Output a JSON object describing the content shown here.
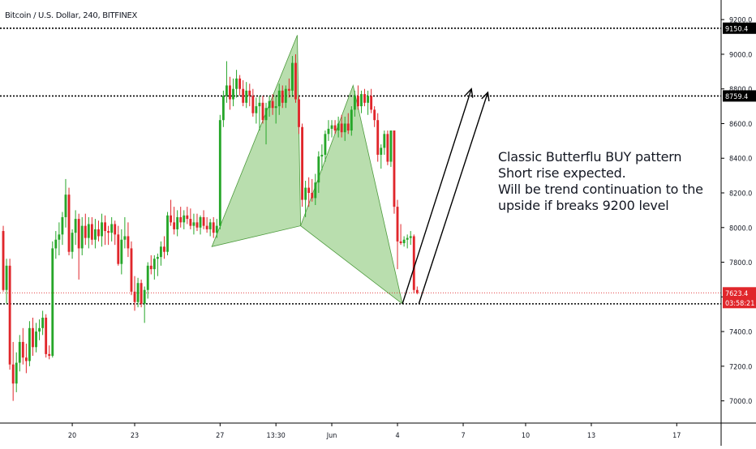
{
  "chart_data": {
    "type": "candlestick",
    "title": "Bitcoin / U.S. Dollar, 240, BITFINEX",
    "ylim": [
      6900,
      9280
    ],
    "yticks": [
      "9200.0",
      "9000.0",
      "8800.0",
      "8600.0",
      "8400.0",
      "8200.0",
      "8000.0",
      "7800.0",
      "7600.0",
      "7400.0",
      "7200.0",
      "7000.0"
    ],
    "xticks": [
      {
        "label": "20",
        "bar": 21
      },
      {
        "label": "23",
        "bar": 40
      },
      {
        "label": "27",
        "bar": 66
      },
      {
        "label": "13:30",
        "bar": 83
      },
      {
        "label": "Jun",
        "bar": 100
      },
      {
        "label": "4",
        "bar": 120
      },
      {
        "label": "7",
        "bar": 140
      },
      {
        "label": "10",
        "bar": 159
      },
      {
        "label": "13",
        "bar": 179
      },
      {
        "label": "17",
        "bar": 205
      }
    ],
    "bars_total": 219,
    "candles": [
      [
        7980,
        8010,
        7630,
        7640
      ],
      [
        7640,
        7820,
        7560,
        7780
      ],
      [
        7780,
        7820,
        7180,
        7210
      ],
      [
        7210,
        7340,
        7000,
        7100
      ],
      [
        7100,
        7280,
        7050,
        7220
      ],
      [
        7220,
        7380,
        7170,
        7340
      ],
      [
        7340,
        7420,
        7210,
        7250
      ],
      [
        7250,
        7330,
        7160,
        7230
      ],
      [
        7230,
        7460,
        7200,
        7420
      ],
      [
        7420,
        7480,
        7260,
        7310
      ],
      [
        7310,
        7450,
        7280,
        7400
      ],
      [
        7400,
        7470,
        7350,
        7420
      ],
      [
        7420,
        7520,
        7380,
        7480
      ],
      [
        7480,
        7500,
        7250,
        7270
      ],
      [
        7270,
        7320,
        7240,
        7260
      ],
      [
        7260,
        7920,
        7250,
        7880
      ],
      [
        7880,
        7980,
        7820,
        7930
      ],
      [
        7930,
        8030,
        7840,
        7960
      ],
      [
        7960,
        8090,
        7900,
        8060
      ],
      [
        8060,
        8280,
        8000,
        8190
      ],
      [
        8190,
        8230,
        7840,
        7860
      ],
      [
        7860,
        7990,
        7820,
        7970
      ],
      [
        7970,
        8100,
        7900,
        8050
      ],
      [
        8050,
        8080,
        7700,
        7880
      ],
      [
        7880,
        8060,
        7840,
        8010
      ],
      [
        8010,
        8080,
        7900,
        7940
      ],
      [
        7940,
        8060,
        7880,
        8020
      ],
      [
        8020,
        8060,
        7900,
        7930
      ],
      [
        7930,
        8050,
        7880,
        7990
      ],
      [
        7990,
        8040,
        7920,
        7950
      ],
      [
        7950,
        8080,
        7890,
        8030
      ],
      [
        8030,
        8070,
        7900,
        7980
      ],
      [
        7980,
        8010,
        7900,
        7970
      ],
      [
        7970,
        8060,
        7920,
        8020
      ],
      [
        8020,
        8040,
        7900,
        7960
      ],
      [
        7960,
        8010,
        7780,
        7790
      ],
      [
        7790,
        7990,
        7730,
        7930
      ],
      [
        7930,
        8060,
        7880,
        7950
      ],
      [
        7950,
        8030,
        7830,
        7880
      ],
      [
        7880,
        7920,
        7610,
        7630
      ],
      [
        7630,
        7720,
        7520,
        7570
      ],
      [
        7570,
        7710,
        7540,
        7680
      ],
      [
        7680,
        7700,
        7540,
        7560
      ],
      [
        7560,
        7660,
        7450,
        7640
      ],
      [
        7640,
        7800,
        7590,
        7780
      ],
      [
        7780,
        7840,
        7730,
        7760
      ],
      [
        7760,
        7840,
        7700,
        7820
      ],
      [
        7820,
        7850,
        7720,
        7830
      ],
      [
        7830,
        7920,
        7780,
        7890
      ],
      [
        7890,
        7950,
        7820,
        7860
      ],
      [
        7860,
        8090,
        7840,
        8070
      ],
      [
        8070,
        8160,
        8010,
        8030
      ],
      [
        8030,
        8120,
        7960,
        7990
      ],
      [
        7990,
        8100,
        7950,
        8060
      ],
      [
        8060,
        8120,
        8000,
        8030
      ],
      [
        8030,
        8100,
        7990,
        8070
      ],
      [
        8070,
        8120,
        8020,
        8050
      ],
      [
        8050,
        8110,
        7990,
        8010
      ],
      [
        8010,
        8080,
        7960,
        8030
      ],
      [
        8030,
        8080,
        7980,
        8000
      ],
      [
        8000,
        8070,
        7960,
        8060
      ],
      [
        8060,
        8100,
        7990,
        8010
      ],
      [
        8010,
        8060,
        7970,
        7990
      ],
      [
        7990,
        8050,
        7950,
        8030
      ],
      [
        8030,
        8060,
        7940,
        7970
      ],
      [
        7970,
        8050,
        7940,
        8010
      ],
      [
        8010,
        8650,
        7990,
        8620
      ],
      [
        8620,
        8790,
        8580,
        8760
      ],
      [
        8760,
        8960,
        8720,
        8820
      ],
      [
        8820,
        8870,
        8680,
        8740
      ],
      [
        8740,
        8860,
        8700,
        8800
      ],
      [
        8800,
        8910,
        8750,
        8860
      ],
      [
        8860,
        8880,
        8760,
        8800
      ],
      [
        8800,
        8850,
        8700,
        8720
      ],
      [
        8720,
        8840,
        8690,
        8790
      ],
      [
        8790,
        8830,
        8700,
        8760
      ],
      [
        8760,
        8800,
        8640,
        8660
      ],
      [
        8660,
        8750,
        8600,
        8700
      ],
      [
        8700,
        8760,
        8560,
        8720
      ],
      [
        8720,
        8760,
        8600,
        8620
      ],
      [
        8620,
        8720,
        8480,
        8690
      ],
      [
        8690,
        8760,
        8640,
        8730
      ],
      [
        8730,
        8770,
        8650,
        8690
      ],
      [
        8690,
        8760,
        8600,
        8700
      ],
      [
        8700,
        8830,
        8650,
        8790
      ],
      [
        8790,
        8820,
        8690,
        8720
      ],
      [
        8720,
        8820,
        8690,
        8800
      ],
      [
        8800,
        8860,
        8750,
        8790
      ],
      [
        8790,
        8990,
        8760,
        8950
      ],
      [
        8950,
        9000,
        8720,
        8740
      ],
      [
        8740,
        8760,
        8540,
        8580
      ],
      [
        8580,
        8600,
        8120,
        8160
      ],
      [
        8160,
        8270,
        8060,
        8230
      ],
      [
        8230,
        8290,
        8120,
        8200
      ],
      [
        8200,
        8280,
        8150,
        8170
      ],
      [
        8170,
        8310,
        8130,
        8260
      ],
      [
        8260,
        8440,
        8200,
        8410
      ],
      [
        8410,
        8480,
        8330,
        8420
      ],
      [
        8420,
        8560,
        8380,
        8540
      ],
      [
        8540,
        8620,
        8500,
        8570
      ],
      [
        8570,
        8620,
        8520,
        8590
      ],
      [
        8590,
        8620,
        8540,
        8560
      ],
      [
        8560,
        8640,
        8520,
        8600
      ],
      [
        8600,
        8650,
        8520,
        8550
      ],
      [
        8550,
        8640,
        8500,
        8600
      ],
      [
        8600,
        8660,
        8540,
        8560
      ],
      [
        8560,
        8700,
        8530,
        8680
      ],
      [
        8680,
        8790,
        8640,
        8760
      ],
      [
        8760,
        8820,
        8680,
        8700
      ],
      [
        8700,
        8790,
        8660,
        8770
      ],
      [
        8770,
        8800,
        8700,
        8720
      ],
      [
        8720,
        8790,
        8650,
        8760
      ],
      [
        8760,
        8800,
        8660,
        8680
      ],
      [
        8680,
        8700,
        8580,
        8620
      ],
      [
        8620,
        8660,
        8380,
        8420
      ],
      [
        8420,
        8480,
        8340,
        8460
      ],
      [
        8460,
        8560,
        8420,
        8540
      ],
      [
        8540,
        8560,
        8360,
        8380
      ],
      [
        8380,
        8560,
        8350,
        8560
      ],
      [
        8560,
        8560,
        8080,
        8120
      ],
      [
        8120,
        8160,
        7760,
        7920
      ],
      [
        7920,
        8020,
        7900,
        7910
      ],
      [
        7910,
        7950,
        7890,
        7930
      ],
      [
        7930,
        7960,
        7880,
        7940
      ],
      [
        7940,
        7980,
        7900,
        7950
      ],
      [
        7950,
        7960,
        7620,
        7640
      ],
      [
        7640,
        7660,
        7615,
        7623
      ]
    ],
    "hlines": [
      {
        "value": 9150.4,
        "label": "9150.4"
      },
      {
        "value": 8759.4,
        "label": "8759.4"
      },
      {
        "value": 7560,
        "label": ""
      }
    ],
    "price_tags": [
      {
        "value": 7623.4,
        "label": "7623.4",
        "sub": "03:58:21",
        "color": "#e0262b"
      }
    ],
    "patterns": [
      {
        "points": [
          [
            64,
            7890
          ],
          [
            90,
            9110
          ],
          [
            91,
            8010
          ]
        ],
        "fill": "#7fc26b"
      },
      {
        "points": [
          [
            91,
            8010
          ],
          [
            107,
            8820
          ],
          [
            122,
            7560
          ]
        ],
        "fill": "#7fc26b"
      }
    ],
    "arrows": [
      {
        "from": [
          122,
          7560
        ],
        "to": [
          143,
          8800
        ]
      },
      {
        "from": [
          127,
          7560
        ],
        "to": [
          148,
          8780
        ]
      }
    ],
    "annotation": [
      "Classic Butterflu BUY pattern",
      "Short rise expected.",
      "Will be trend continuation to the",
      "upside if breaks 9200 level"
    ],
    "colors": {
      "up": "#26a629",
      "down": "#e0262b",
      "axis": "#000000",
      "text": "#131722",
      "tag_bg": "#000000"
    }
  }
}
